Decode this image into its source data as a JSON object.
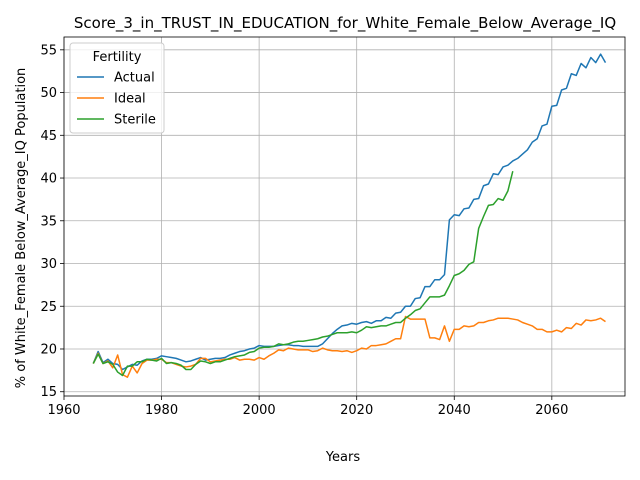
{
  "chart_data": {
    "type": "line",
    "title": "Score_3_in_TRUST_IN_EDUCATION_for_White_Female_Below_Average_IQ",
    "xlabel": "Years",
    "ylabel": "% of White_Female Below_Average_IQ Population",
    "xlim": [
      1960,
      2075
    ],
    "ylim": [
      14.5,
      56.5
    ],
    "xticks": [
      1960,
      1980,
      2000,
      2020,
      2040,
      2060
    ],
    "yticks": [
      15,
      20,
      25,
      30,
      35,
      40,
      45,
      50,
      55
    ],
    "grid": true,
    "legend": {
      "title": "Fertility",
      "position": "top-left"
    },
    "series": [
      {
        "name": "Actual",
        "color": "#1f77b4",
        "points": [
          [
            1966,
            18.3
          ],
          [
            1967,
            19.7
          ],
          [
            1968,
            18.4
          ],
          [
            1969,
            18.8
          ],
          [
            1970,
            18.3
          ],
          [
            1971,
            18.2
          ],
          [
            1972,
            17.6
          ],
          [
            1973,
            17.9
          ],
          [
            1974,
            18.2
          ],
          [
            1975,
            18.1
          ],
          [
            1976,
            18.6
          ],
          [
            1977,
            18.8
          ],
          [
            1978,
            18.8
          ],
          [
            1979,
            18.9
          ],
          [
            1980,
            19.2
          ],
          [
            1981,
            19.1
          ],
          [
            1982,
            19.0
          ],
          [
            1983,
            18.9
          ],
          [
            1984,
            18.7
          ],
          [
            1985,
            18.5
          ],
          [
            1986,
            18.6
          ],
          [
            1987,
            18.8
          ],
          [
            1988,
            19.0
          ],
          [
            1989,
            18.7
          ],
          [
            1990,
            18.8
          ],
          [
            1991,
            18.9
          ],
          [
            1992,
            18.9
          ],
          [
            1993,
            19.0
          ],
          [
            1994,
            19.3
          ],
          [
            1995,
            19.5
          ],
          [
            1996,
            19.7
          ],
          [
            1997,
            19.8
          ],
          [
            1998,
            20.0
          ],
          [
            1999,
            20.1
          ],
          [
            2000,
            20.4
          ],
          [
            2001,
            20.3
          ],
          [
            2002,
            20.3
          ],
          [
            2003,
            20.3
          ],
          [
            2004,
            20.4
          ],
          [
            2005,
            20.5
          ],
          [
            2006,
            20.5
          ],
          [
            2007,
            20.4
          ],
          [
            2008,
            20.4
          ],
          [
            2009,
            20.3
          ],
          [
            2010,
            20.3
          ],
          [
            2011,
            20.3
          ],
          [
            2012,
            20.3
          ],
          [
            2013,
            20.6
          ],
          [
            2014,
            21.2
          ],
          [
            2015,
            21.8
          ],
          [
            2016,
            22.3
          ],
          [
            2017,
            22.7
          ],
          [
            2018,
            22.8
          ],
          [
            2019,
            23.0
          ],
          [
            2020,
            22.9
          ],
          [
            2021,
            23.1
          ],
          [
            2022,
            23.2
          ],
          [
            2023,
            23.0
          ],
          [
            2024,
            23.3
          ],
          [
            2025,
            23.3
          ],
          [
            2026,
            23.7
          ],
          [
            2027,
            23.6
          ],
          [
            2028,
            24.2
          ],
          [
            2029,
            24.3
          ],
          [
            2030,
            25.0
          ],
          [
            2031,
            25.0
          ],
          [
            2032,
            25.9
          ],
          [
            2033,
            26.0
          ],
          [
            2034,
            27.3
          ],
          [
            2035,
            27.3
          ],
          [
            2036,
            28.1
          ],
          [
            2037,
            28.1
          ],
          [
            2038,
            28.7
          ],
          [
            2039,
            35.1
          ],
          [
            2040,
            35.7
          ],
          [
            2041,
            35.6
          ],
          [
            2042,
            36.4
          ],
          [
            2043,
            36.5
          ],
          [
            2044,
            37.5
          ],
          [
            2045,
            37.6
          ],
          [
            2046,
            39.1
          ],
          [
            2047,
            39.3
          ],
          [
            2048,
            40.5
          ],
          [
            2049,
            40.4
          ],
          [
            2050,
            41.3
          ],
          [
            2051,
            41.5
          ],
          [
            2052,
            42.0
          ],
          [
            2053,
            42.3
          ],
          [
            2054,
            42.8
          ],
          [
            2055,
            43.3
          ],
          [
            2056,
            44.2
          ],
          [
            2057,
            44.6
          ],
          [
            2058,
            46.1
          ],
          [
            2059,
            46.3
          ],
          [
            2060,
            48.4
          ],
          [
            2061,
            48.5
          ],
          [
            2062,
            50.3
          ],
          [
            2063,
            50.5
          ],
          [
            2064,
            52.2
          ],
          [
            2065,
            52.0
          ],
          [
            2066,
            53.4
          ],
          [
            2067,
            52.9
          ],
          [
            2068,
            54.1
          ],
          [
            2069,
            53.5
          ],
          [
            2070,
            54.5
          ],
          [
            2071,
            53.5
          ]
        ]
      },
      {
        "name": "Ideal",
        "color": "#ff7f0e",
        "points": [
          [
            1966,
            18.3
          ],
          [
            1967,
            19.5
          ],
          [
            1968,
            18.3
          ],
          [
            1969,
            18.6
          ],
          [
            1970,
            17.8
          ],
          [
            1971,
            19.3
          ],
          [
            1972,
            17.0
          ],
          [
            1973,
            16.7
          ],
          [
            1974,
            18.0
          ],
          [
            1975,
            17.2
          ],
          [
            1976,
            18.3
          ],
          [
            1977,
            18.7
          ],
          [
            1978,
            18.7
          ],
          [
            1979,
            18.8
          ],
          [
            1980,
            18.8
          ],
          [
            1981,
            18.4
          ],
          [
            1982,
            18.4
          ],
          [
            1983,
            18.2
          ],
          [
            1984,
            18.0
          ],
          [
            1985,
            17.9
          ],
          [
            1986,
            18.0
          ],
          [
            1987,
            18.2
          ],
          [
            1988,
            18.9
          ],
          [
            1989,
            18.9
          ],
          [
            1990,
            18.5
          ],
          [
            1991,
            18.6
          ],
          [
            1992,
            18.7
          ],
          [
            1993,
            18.8
          ],
          [
            1994,
            18.8
          ],
          [
            1995,
            19.0
          ],
          [
            1996,
            18.7
          ],
          [
            1997,
            18.8
          ],
          [
            1998,
            18.8
          ],
          [
            1999,
            18.7
          ],
          [
            2000,
            19.0
          ],
          [
            2001,
            18.8
          ],
          [
            2002,
            19.2
          ],
          [
            2003,
            19.5
          ],
          [
            2004,
            19.9
          ],
          [
            2005,
            19.8
          ],
          [
            2006,
            20.1
          ],
          [
            2007,
            20.0
          ],
          [
            2008,
            19.9
          ],
          [
            2009,
            19.9
          ],
          [
            2010,
            19.9
          ],
          [
            2011,
            19.7
          ],
          [
            2012,
            19.8
          ],
          [
            2013,
            20.1
          ],
          [
            2014,
            19.9
          ],
          [
            2015,
            19.8
          ],
          [
            2016,
            19.8
          ],
          [
            2017,
            19.7
          ],
          [
            2018,
            19.8
          ],
          [
            2019,
            19.6
          ],
          [
            2020,
            19.8
          ],
          [
            2021,
            20.1
          ],
          [
            2022,
            20.0
          ],
          [
            2023,
            20.4
          ],
          [
            2024,
            20.4
          ],
          [
            2025,
            20.5
          ],
          [
            2026,
            20.6
          ],
          [
            2027,
            20.9
          ],
          [
            2028,
            21.2
          ],
          [
            2029,
            21.2
          ],
          [
            2030,
            23.8
          ],
          [
            2031,
            23.5
          ],
          [
            2032,
            23.5
          ],
          [
            2033,
            23.5
          ],
          [
            2034,
            23.5
          ],
          [
            2035,
            21.3
          ],
          [
            2036,
            21.3
          ],
          [
            2037,
            21.1
          ],
          [
            2038,
            22.7
          ],
          [
            2039,
            20.9
          ],
          [
            2040,
            22.3
          ],
          [
            2041,
            22.3
          ],
          [
            2042,
            22.7
          ],
          [
            2043,
            22.6
          ],
          [
            2044,
            22.7
          ],
          [
            2045,
            23.1
          ],
          [
            2046,
            23.1
          ],
          [
            2047,
            23.3
          ],
          [
            2048,
            23.4
          ],
          [
            2049,
            23.6
          ],
          [
            2050,
            23.6
          ],
          [
            2051,
            23.6
          ],
          [
            2052,
            23.5
          ],
          [
            2053,
            23.4
          ],
          [
            2054,
            23.1
          ],
          [
            2055,
            22.9
          ],
          [
            2056,
            22.7
          ],
          [
            2057,
            22.3
          ],
          [
            2058,
            22.3
          ],
          [
            2059,
            22.0
          ],
          [
            2060,
            22.0
          ],
          [
            2061,
            22.2
          ],
          [
            2062,
            22.0
          ],
          [
            2063,
            22.5
          ],
          [
            2064,
            22.4
          ],
          [
            2065,
            23.0
          ],
          [
            2066,
            22.8
          ],
          [
            2067,
            23.4
          ],
          [
            2068,
            23.3
          ],
          [
            2069,
            23.4
          ],
          [
            2070,
            23.6
          ],
          [
            2071,
            23.2
          ]
        ]
      },
      {
        "name": "Sterile",
        "color": "#2ca02c",
        "points": [
          [
            1966,
            18.3
          ],
          [
            1967,
            19.4
          ],
          [
            1968,
            18.3
          ],
          [
            1969,
            18.5
          ],
          [
            1970,
            18.2
          ],
          [
            1971,
            17.3
          ],
          [
            1972,
            16.9
          ],
          [
            1973,
            18.0
          ],
          [
            1974,
            18.0
          ],
          [
            1975,
            18.5
          ],
          [
            1976,
            18.5
          ],
          [
            1977,
            18.8
          ],
          [
            1978,
            18.7
          ],
          [
            1979,
            18.6
          ],
          [
            1980,
            18.9
          ],
          [
            1981,
            18.3
          ],
          [
            1982,
            18.4
          ],
          [
            1983,
            18.3
          ],
          [
            1984,
            18.1
          ],
          [
            1985,
            17.6
          ],
          [
            1986,
            17.6
          ],
          [
            1987,
            18.2
          ],
          [
            1988,
            18.6
          ],
          [
            1989,
            18.5
          ],
          [
            1990,
            18.3
          ],
          [
            1991,
            18.5
          ],
          [
            1992,
            18.5
          ],
          [
            1993,
            18.7
          ],
          [
            1994,
            18.9
          ],
          [
            1995,
            19.1
          ],
          [
            1996,
            19.2
          ],
          [
            1997,
            19.3
          ],
          [
            1998,
            19.6
          ],
          [
            1999,
            19.7
          ],
          [
            2000,
            20.1
          ],
          [
            2001,
            20.2
          ],
          [
            2002,
            20.2
          ],
          [
            2003,
            20.3
          ],
          [
            2004,
            20.6
          ],
          [
            2005,
            20.5
          ],
          [
            2006,
            20.6
          ],
          [
            2007,
            20.8
          ],
          [
            2008,
            20.9
          ],
          [
            2009,
            20.9
          ],
          [
            2010,
            21.0
          ],
          [
            2011,
            21.1
          ],
          [
            2012,
            21.2
          ],
          [
            2013,
            21.4
          ],
          [
            2014,
            21.5
          ],
          [
            2015,
            21.7
          ],
          [
            2016,
            21.9
          ],
          [
            2017,
            21.9
          ],
          [
            2018,
            21.9
          ],
          [
            2019,
            22.0
          ],
          [
            2020,
            21.9
          ],
          [
            2021,
            22.2
          ],
          [
            2022,
            22.6
          ],
          [
            2023,
            22.5
          ],
          [
            2024,
            22.6
          ],
          [
            2025,
            22.7
          ],
          [
            2026,
            22.7
          ],
          [
            2027,
            22.9
          ],
          [
            2028,
            23.1
          ],
          [
            2029,
            23.1
          ],
          [
            2030,
            23.6
          ],
          [
            2031,
            24.0
          ],
          [
            2032,
            24.5
          ],
          [
            2033,
            24.7
          ],
          [
            2034,
            25.4
          ],
          [
            2035,
            26.1
          ],
          [
            2036,
            26.1
          ],
          [
            2037,
            26.1
          ],
          [
            2038,
            26.3
          ],
          [
            2039,
            27.4
          ],
          [
            2040,
            28.6
          ],
          [
            2041,
            28.8
          ],
          [
            2042,
            29.2
          ],
          [
            2043,
            29.9
          ],
          [
            2044,
            30.2
          ],
          [
            2045,
            34.1
          ],
          [
            2046,
            35.5
          ],
          [
            2047,
            36.8
          ],
          [
            2048,
            36.9
          ],
          [
            2049,
            37.6
          ],
          [
            2050,
            37.4
          ],
          [
            2051,
            38.5
          ],
          [
            2052,
            40.8
          ]
        ]
      }
    ]
  }
}
